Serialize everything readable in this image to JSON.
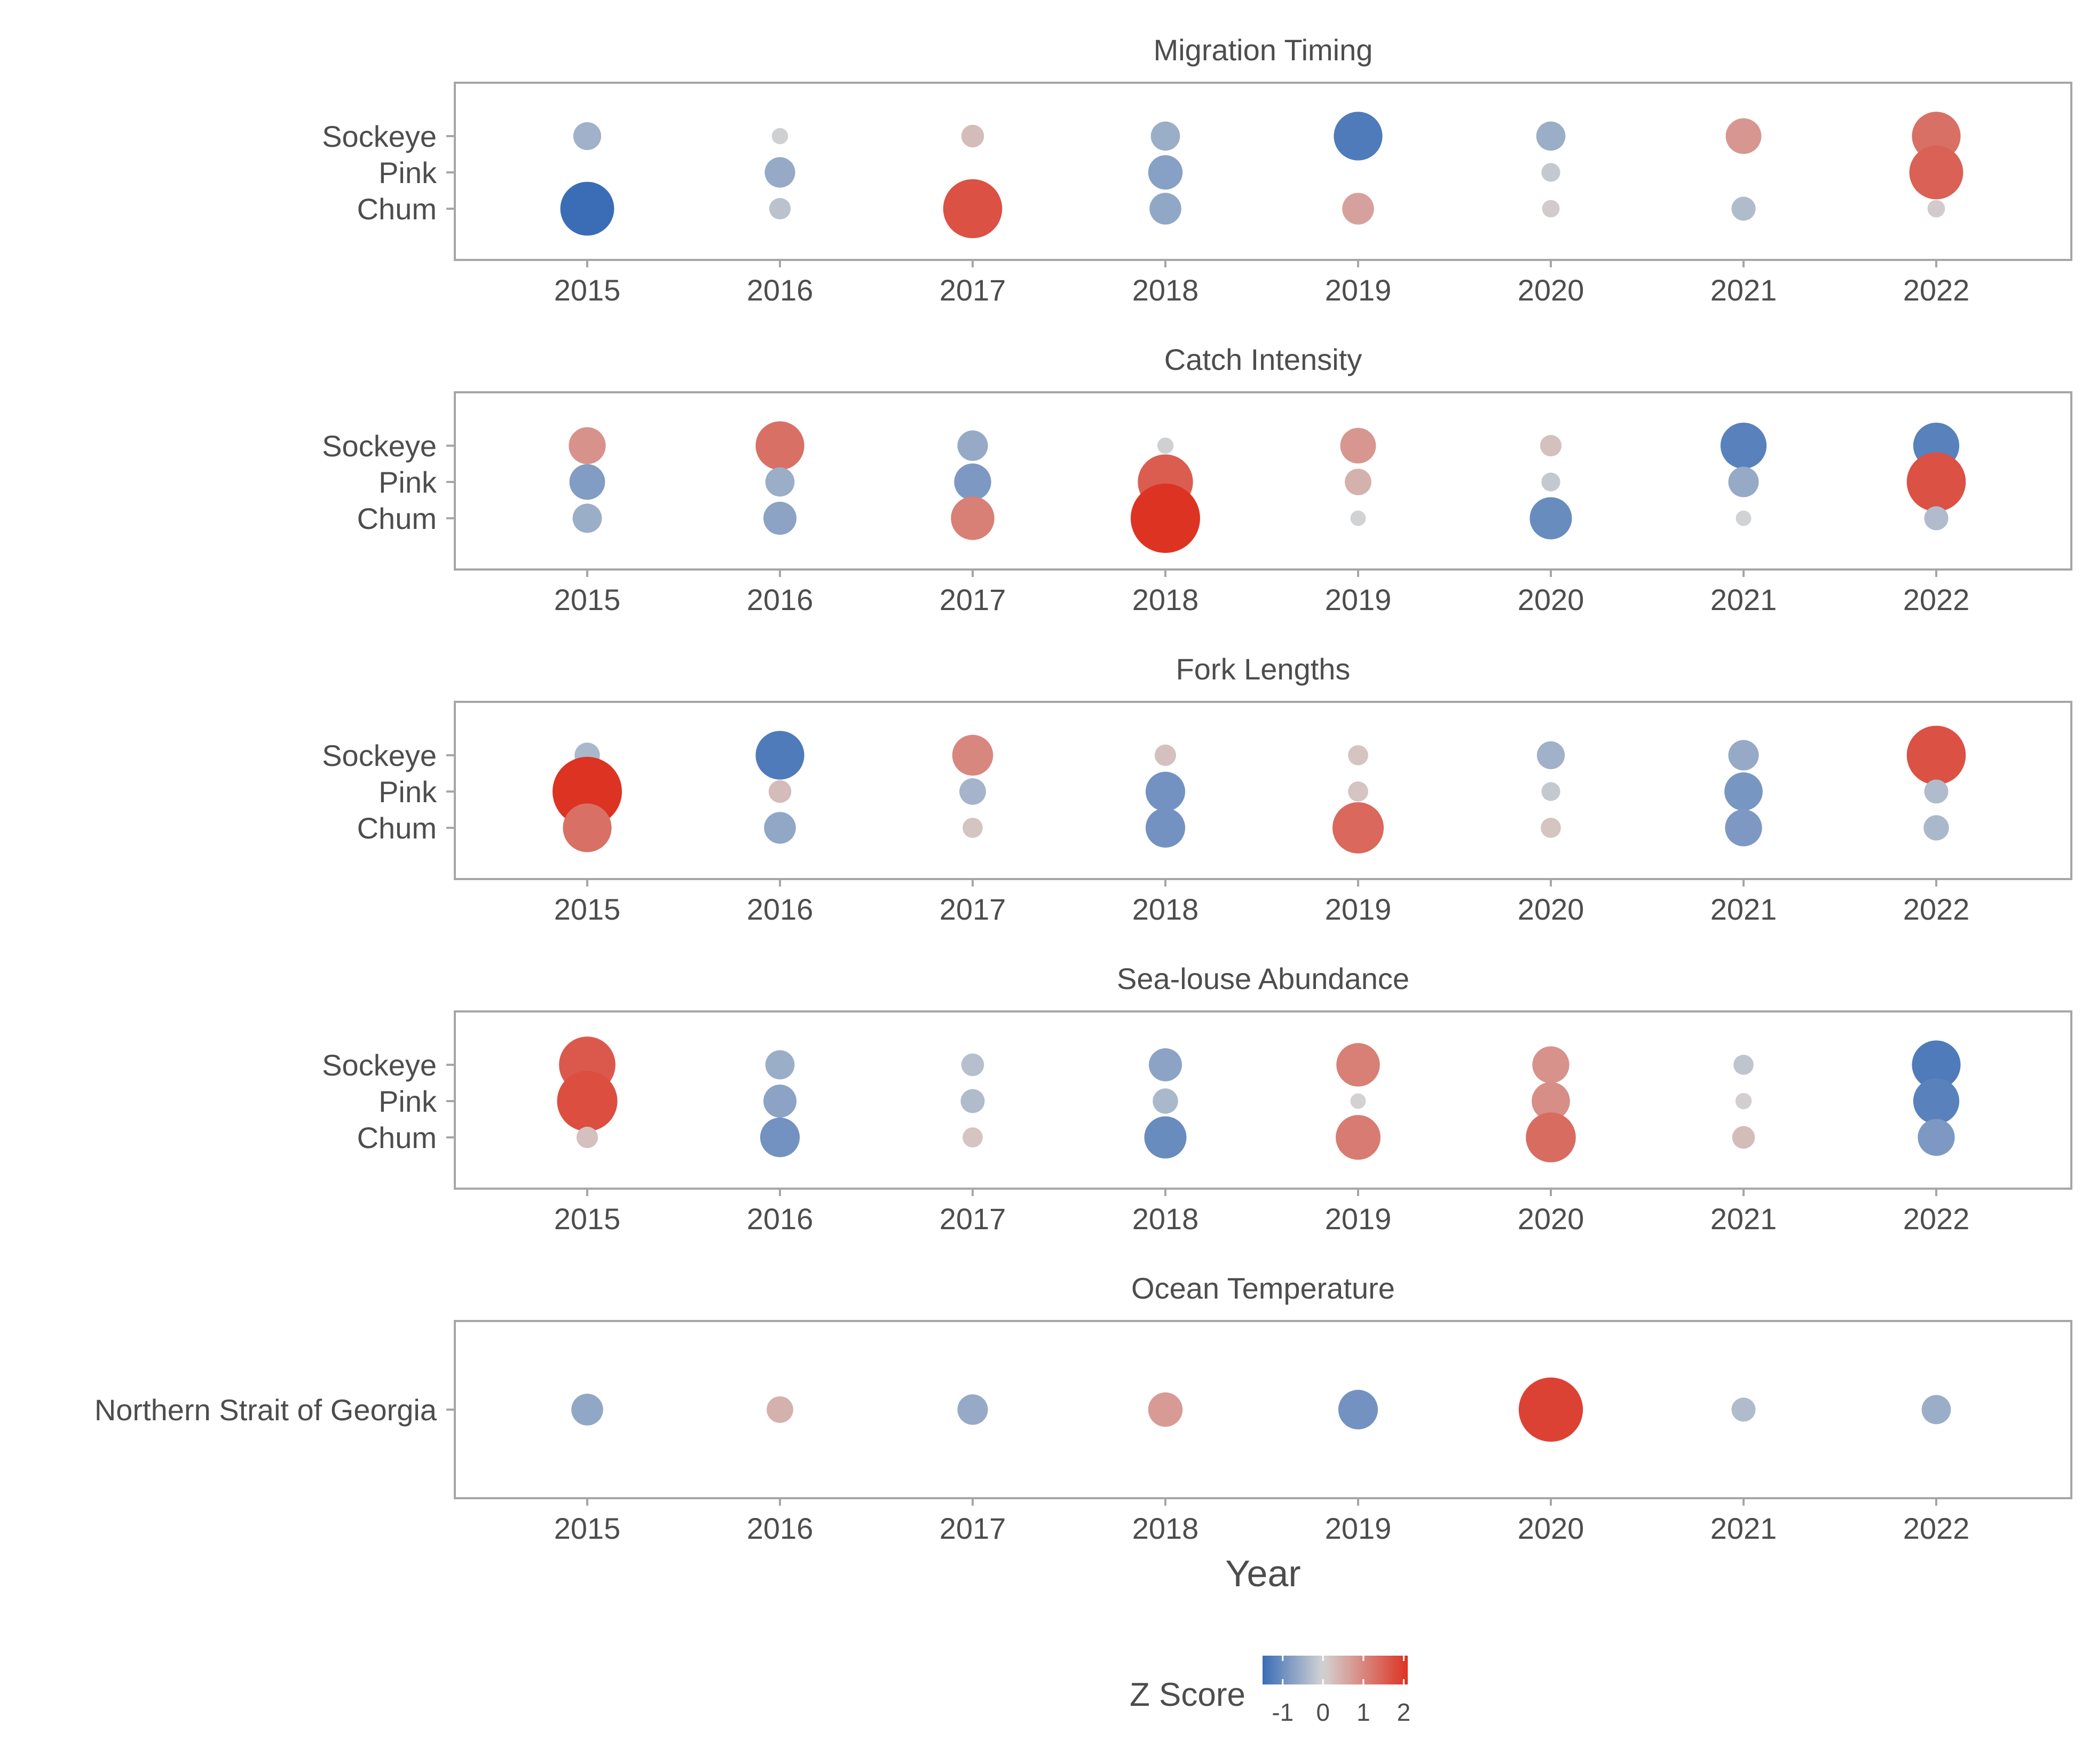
{
  "chart_data": {
    "type": "bubble-heatmap",
    "x_label": "Year",
    "years": [
      "2015",
      "2016",
      "2017",
      "2018",
      "2019",
      "2020",
      "2021",
      "2022"
    ],
    "legend": {
      "title": "Z Score",
      "ticks": [
        "-1",
        "0",
        "1",
        "2"
      ],
      "range": [
        -1.5,
        2.1
      ],
      "colors": {
        "low": "#3b6db6",
        "mid": "#d3d3d3",
        "high": "#dd3322"
      },
      "placement": "bottom"
    },
    "panels": [
      {
        "title": "Migration Timing",
        "rows": [
          "Sockeye",
          "Pink",
          "Chum"
        ],
        "values": [
          [
            -0.5,
            -0.05,
            0.3,
            -0.55,
            -1.3,
            -0.55,
            0.8,
            1.3
          ],
          [
            null,
            -0.6,
            null,
            -0.75,
            null,
            -0.15,
            null,
            1.5
          ],
          [
            -1.5,
            -0.25,
            1.7,
            -0.65,
            0.65,
            0.1,
            -0.35,
            0.1
          ]
        ]
      },
      {
        "title": "Catch Intensity",
        "rows": [
          "Sockeye",
          "Pink",
          "Chum"
        ],
        "values": [
          [
            0.85,
            1.3,
            -0.6,
            -0.05,
            0.8,
            0.25,
            -1.2,
            -1.2
          ],
          [
            -0.8,
            -0.55,
            -0.85,
            1.55,
            0.45,
            -0.15,
            -0.6,
            1.7
          ],
          [
            -0.55,
            -0.7,
            1.1,
            2.1,
            -0.02,
            -1.05,
            -0.02,
            -0.35
          ]
        ]
      },
      {
        "title": "Fork Lengths",
        "rows": [
          "Sockeye",
          "Pink",
          "Chum"
        ],
        "values": [
          [
            -0.4,
            -1.3,
            1.0,
            0.25,
            0.2,
            -0.5,
            -0.6,
            1.7
          ],
          [
            2.1,
            0.3,
            -0.45,
            -0.95,
            0.2,
            -0.15,
            -0.9,
            -0.35
          ],
          [
            1.3,
            -0.65,
            0.2,
            -0.95,
            1.4,
            0.2,
            -0.85,
            -0.4
          ]
        ]
      },
      {
        "title": "Sea-louse Abundance",
        "rows": [
          "Sockeye",
          "Pink",
          "Chum"
        ],
        "values": [
          [
            1.6,
            -0.55,
            -0.3,
            -0.7,
            1.1,
            0.85,
            -0.2,
            -1.3
          ],
          [
            1.75,
            -0.7,
            -0.35,
            -0.4,
            0.02,
            0.9,
            0.05,
            -1.2
          ],
          [
            0.25,
            -0.95,
            0.2,
            -1.05,
            1.15,
            1.35,
            0.3,
            -0.85
          ]
        ]
      },
      {
        "title": "Ocean Temperature",
        "rows": [
          "Northern Strait of Georgia"
        ],
        "values": [
          [
            -0.65,
            0.45,
            -0.6,
            0.75,
            -0.95,
            1.9,
            -0.35,
            -0.55
          ]
        ]
      }
    ]
  }
}
